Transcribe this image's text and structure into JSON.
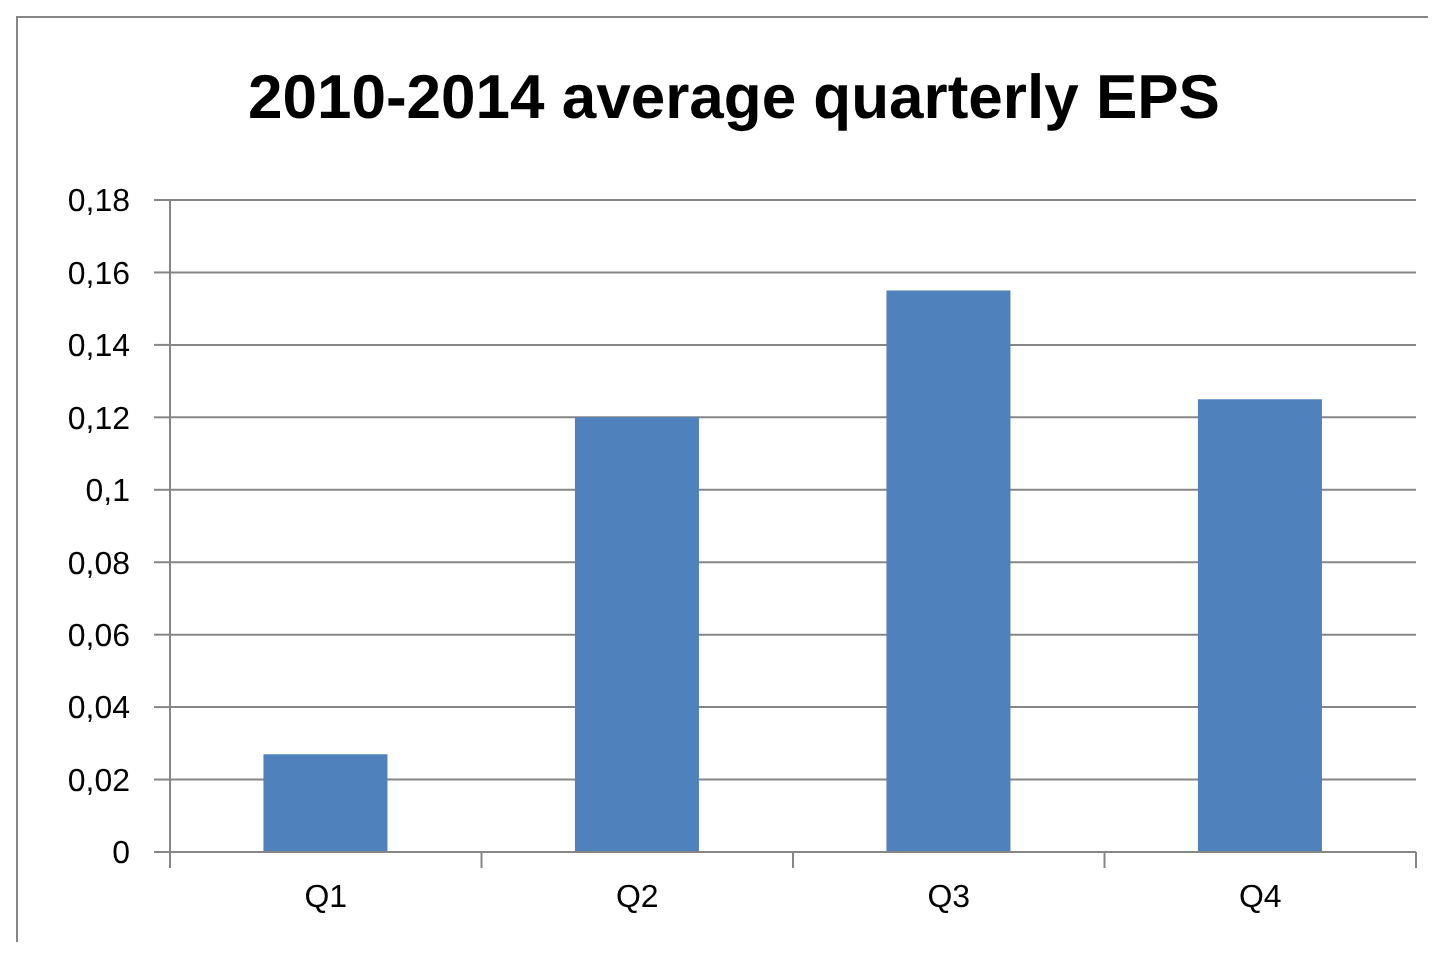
{
  "chart_data": {
    "type": "bar",
    "title": "2010-2014 average quarterly EPS",
    "categories": [
      "Q1",
      "Q2",
      "Q3",
      "Q4"
    ],
    "values": [
      0.027,
      0.12,
      0.155,
      0.125
    ],
    "color": "#4f81bd",
    "ylim": [
      0,
      0.18
    ],
    "yticks": [
      0,
      {
        "value": 0.02,
        "label": "0,02"
      },
      {
        "value": 0.04,
        "label": "0,04"
      },
      {
        "value": 0.06,
        "label": "0,06"
      },
      {
        "value": 0.08,
        "label": "0,08"
      },
      {
        "value": 0.1,
        "label": "0,1"
      },
      {
        "value": 0.12,
        "label": "0,12"
      },
      {
        "value": 0.14,
        "label": "0,14"
      },
      {
        "value": 0.16,
        "label": "0,16"
      },
      {
        "value": 0.18,
        "label": "0,18"
      }
    ],
    "grid": "y"
  }
}
